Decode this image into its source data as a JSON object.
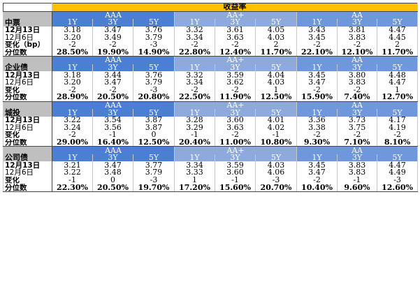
{
  "title": "收益率",
  "groups": [
    "AAA",
    "AA+",
    "AA"
  ],
  "tenors": [
    "1Y",
    "3Y",
    "5Y"
  ],
  "sections": [
    {
      "name": "中票",
      "rows": [
        {
          "label": "12月13日",
          "values": [
            "3.18",
            "3.47",
            "3.76",
            "3.32",
            "3.61",
            "4.05",
            "3.43",
            "3.81",
            "4.47"
          ]
        },
        {
          "label": "12月6日",
          "values": [
            "3.20",
            "3.49",
            "3.79",
            "3.34",
            "3.63",
            "4.03",
            "3.45",
            "3.83",
            "4.45"
          ]
        },
        {
          "label": "变化（bp）",
          "values": [
            "-2",
            "-2",
            "-3",
            "-2",
            "-2",
            "2",
            "-2",
            "-2",
            "2"
          ]
        },
        {
          "label": "分位数",
          "values": [
            "28.50%",
            "19.90%",
            "14.90%",
            "22.80%",
            "12.40%",
            "11.70%",
            "22.10%",
            "12.10%",
            "11.70%"
          ]
        }
      ]
    },
    {
      "name": "企业债",
      "rows": [
        {
          "label": "12月13日",
          "values": [
            "3.18",
            "3.44",
            "3.76",
            "3.32",
            "3.59",
            "4.04",
            "3.45",
            "3.80",
            "4.48"
          ]
        },
        {
          "label": "12月6日",
          "values": [
            "3.20",
            "3.47",
            "3.79",
            "3.34",
            "3.62",
            "4.03",
            "3.47",
            "3.83",
            "4.47"
          ]
        },
        {
          "label": "变化",
          "values": [
            "-2",
            "-2",
            "-3",
            "-2",
            "-2",
            "1",
            "-2",
            "-2",
            "1"
          ]
        },
        {
          "label": "分位数",
          "values": [
            "28.90%",
            "20.50%",
            "20.80%",
            "22.50%",
            "11.90%",
            "12.50%",
            "15.90%",
            "7.40%",
            "12.70%"
          ]
        }
      ]
    },
    {
      "name": "城投",
      "rows": [
        {
          "label": "12月13日",
          "values": [
            "3.22",
            "3.54",
            "3.87",
            "3.28",
            "3.60",
            "4.01",
            "3.36",
            "3.73",
            "4.17"
          ]
        },
        {
          "label": "12月6日",
          "values": [
            "3.24",
            "3.56",
            "3.87",
            "3.29",
            "3.63",
            "4.02",
            "3.38",
            "3.75",
            "4.19"
          ]
        },
        {
          "label": "变化",
          "values": [
            "-2",
            "-1",
            "0",
            "-1",
            "-2",
            "-1",
            "-2",
            "-2",
            "-2"
          ]
        },
        {
          "label": "分位数",
          "values": [
            "29.00%",
            "16.40%",
            "12.50%",
            "20.40%",
            "11.00%",
            "10.80%",
            "9.30%",
            "7.10%",
            "8.10%"
          ]
        }
      ]
    },
    {
      "name": "公司债",
      "rows": [
        {
          "label": "12月13日",
          "values": [
            "3.21",
            "3.47",
            "3.77",
            "3.34",
            "3.59",
            "4.03",
            "3.45",
            "3.83",
            "4.47"
          ]
        },
        {
          "label": "12月6日",
          "values": [
            "3.22",
            "3.48",
            "3.79",
            "3.33",
            "3.60",
            "4.06",
            "3.47",
            "3.83",
            "4.49"
          ]
        },
        {
          "label": "变化",
          "values": [
            "-1",
            "0",
            "-3",
            "1",
            "-1",
            "-3",
            "-2",
            "-1",
            "-3"
          ]
        },
        {
          "label": "分位数",
          "values": [
            "22.30%",
            "20.50%",
            "19.70%",
            "17.20%",
            "15.60%",
            "20.70%",
            "10.40%",
            "9.60%",
            "12.60%"
          ]
        }
      ]
    }
  ]
}
